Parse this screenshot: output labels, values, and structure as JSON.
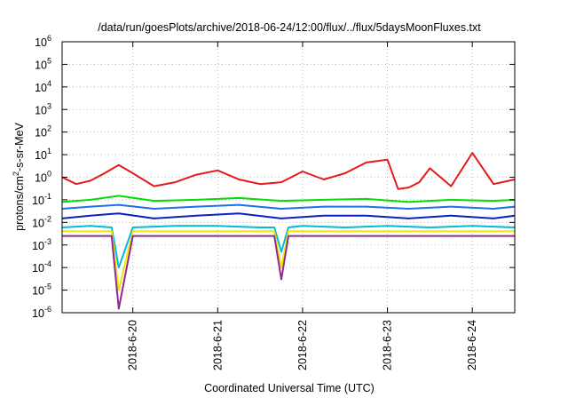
{
  "chart_data": {
    "type": "line",
    "title": "/data/run/goesPlots/archive/2018-06-24/12:00/flux/../flux/5daysMoonFluxes.txt",
    "xlabel": "Coordinated Universal Time (UTC)",
    "ylabel": {
      "prefix": "protons/cm",
      "sup": "2",
      "suffix": "-s-sr-MeV"
    },
    "x_scale": "time",
    "xlim": [
      "2018-06-19T04:00",
      "2018-06-24T12:00"
    ],
    "y_scale": "log",
    "ylim": [
      1e-06,
      1000000
    ],
    "x_ticks": [
      "2018-6-20",
      "2018-6-21",
      "2018-6-22",
      "2018-6-23",
      "2018-6-24"
    ],
    "y_ticks": [
      {
        "base": "10",
        "exp": "-6"
      },
      {
        "base": "10",
        "exp": "-5"
      },
      {
        "base": "10",
        "exp": "-4"
      },
      {
        "base": "10",
        "exp": "-3"
      },
      {
        "base": "10",
        "exp": "-2"
      },
      {
        "base": "10",
        "exp": "-1"
      },
      {
        "base": "10",
        "exp": "0"
      },
      {
        "base": "10",
        "exp": "1"
      },
      {
        "base": "10",
        "exp": "2"
      },
      {
        "base": "10",
        "exp": "3"
      },
      {
        "base": "10",
        "exp": "4"
      },
      {
        "base": "10",
        "exp": "5"
      },
      {
        "base": "10",
        "exp": "6"
      }
    ],
    "grid": true,
    "legend": "none",
    "series": [
      {
        "color": "#e31a1c",
        "x": [
          "2018-06-19T04:00",
          "2018-06-19T08:00",
          "2018-06-19T12:00",
          "2018-06-19T16:00",
          "2018-06-19T20:00",
          "2018-06-20T00:00",
          "2018-06-20T06:00",
          "2018-06-20T12:00",
          "2018-06-20T18:00",
          "2018-06-21T00:00",
          "2018-06-21T06:00",
          "2018-06-21T12:00",
          "2018-06-21T18:00",
          "2018-06-22T00:00",
          "2018-06-22T06:00",
          "2018-06-22T12:00",
          "2018-06-22T18:00",
          "2018-06-23T00:00",
          "2018-06-23T03:00",
          "2018-06-23T06:00",
          "2018-06-23T09:00",
          "2018-06-23T12:00",
          "2018-06-23T18:00",
          "2018-06-24T00:00",
          "2018-06-24T06:00",
          "2018-06-24T12:00"
        ],
        "y": [
          1.0,
          0.5,
          0.7,
          1.5,
          3.5,
          1.5,
          0.4,
          0.6,
          1.3,
          2.0,
          0.8,
          0.5,
          0.6,
          1.8,
          0.8,
          1.5,
          4.5,
          6.0,
          0.3,
          0.35,
          0.6,
          2.5,
          0.4,
          12,
          0.5,
          0.8
        ]
      },
      {
        "color": "#00e000",
        "x": [
          "2018-06-19T04:00",
          "2018-06-19T12:00",
          "2018-06-19T20:00",
          "2018-06-20T06:00",
          "2018-06-20T18:00",
          "2018-06-21T06:00",
          "2018-06-21T18:00",
          "2018-06-22T06:00",
          "2018-06-22T18:00",
          "2018-06-23T06:00",
          "2018-06-23T18:00",
          "2018-06-24T06:00",
          "2018-06-24T12:00"
        ],
        "y": [
          0.08,
          0.1,
          0.15,
          0.09,
          0.1,
          0.12,
          0.09,
          0.1,
          0.11,
          0.08,
          0.1,
          0.09,
          0.1
        ]
      },
      {
        "color": "#1e6fe8",
        "x": [
          "2018-06-19T04:00",
          "2018-06-19T12:00",
          "2018-06-19T20:00",
          "2018-06-20T06:00",
          "2018-06-20T18:00",
          "2018-06-21T06:00",
          "2018-06-21T18:00",
          "2018-06-22T06:00",
          "2018-06-22T18:00",
          "2018-06-23T06:00",
          "2018-06-23T18:00",
          "2018-06-24T06:00",
          "2018-06-24T12:00"
        ],
        "y": [
          0.04,
          0.05,
          0.06,
          0.04,
          0.05,
          0.06,
          0.04,
          0.05,
          0.05,
          0.04,
          0.05,
          0.04,
          0.05
        ]
      },
      {
        "color": "#0a1fc4",
        "x": [
          "2018-06-19T04:00",
          "2018-06-19T12:00",
          "2018-06-19T20:00",
          "2018-06-20T06:00",
          "2018-06-20T18:00",
          "2018-06-21T06:00",
          "2018-06-21T18:00",
          "2018-06-22T06:00",
          "2018-06-22T18:00",
          "2018-06-23T06:00",
          "2018-06-23T18:00",
          "2018-06-24T06:00",
          "2018-06-24T12:00"
        ],
        "y": [
          0.015,
          0.02,
          0.025,
          0.015,
          0.02,
          0.025,
          0.015,
          0.02,
          0.02,
          0.015,
          0.02,
          0.015,
          0.02
        ]
      },
      {
        "color": "#00bcd4",
        "x": [
          "2018-06-19T04:00",
          "2018-06-19T12:00",
          "2018-06-19T18:00",
          "2018-06-19T20:00",
          "2018-06-20T00:00",
          "2018-06-20T12:00",
          "2018-06-21T00:00",
          "2018-06-21T12:00",
          "2018-06-21T16:00",
          "2018-06-21T18:00",
          "2018-06-21T20:00",
          "2018-06-22T00:00",
          "2018-06-22T12:00",
          "2018-06-23T00:00",
          "2018-06-23T12:00",
          "2018-06-24T00:00",
          "2018-06-24T12:00"
        ],
        "y": [
          0.006,
          0.007,
          0.006,
          0.0001,
          0.006,
          0.007,
          0.007,
          0.006,
          0.006,
          0.0005,
          0.006,
          0.007,
          0.006,
          0.007,
          0.006,
          0.007,
          0.006
        ]
      },
      {
        "color": "#f2e600",
        "x": [
          "2018-06-19T04:00",
          "2018-06-19T12:00",
          "2018-06-19T18:00",
          "2018-06-19T20:00",
          "2018-06-20T00:00",
          "2018-06-20T12:00",
          "2018-06-21T00:00",
          "2018-06-21T12:00",
          "2018-06-21T16:00",
          "2018-06-21T18:00",
          "2018-06-21T20:00",
          "2018-06-22T00:00",
          "2018-06-22T12:00",
          "2018-06-23T00:00",
          "2018-06-23T12:00",
          "2018-06-24T00:00",
          "2018-06-24T12:00"
        ],
        "y": [
          0.004,
          0.004,
          0.004,
          1e-05,
          0.004,
          0.004,
          0.004,
          0.004,
          0.004,
          0.0001,
          0.004,
          0.004,
          0.004,
          0.004,
          0.004,
          0.004,
          0.004
        ]
      },
      {
        "color": "#8e2b8e",
        "x": [
          "2018-06-19T04:00",
          "2018-06-19T12:00",
          "2018-06-19T18:00",
          "2018-06-19T20:00",
          "2018-06-20T00:00",
          "2018-06-20T12:00",
          "2018-06-21T00:00",
          "2018-06-21T12:00",
          "2018-06-21T16:00",
          "2018-06-21T18:00",
          "2018-06-21T20:00",
          "2018-06-22T00:00",
          "2018-06-22T12:00",
          "2018-06-23T00:00",
          "2018-06-23T12:00",
          "2018-06-24T00:00",
          "2018-06-24T12:00"
        ],
        "y": [
          0.0025,
          0.0025,
          0.0025,
          1.5e-06,
          0.0025,
          0.0025,
          0.0025,
          0.0025,
          0.0025,
          3e-05,
          0.0025,
          0.0025,
          0.0025,
          0.0025,
          0.0025,
          0.0025,
          0.0025
        ]
      }
    ]
  }
}
